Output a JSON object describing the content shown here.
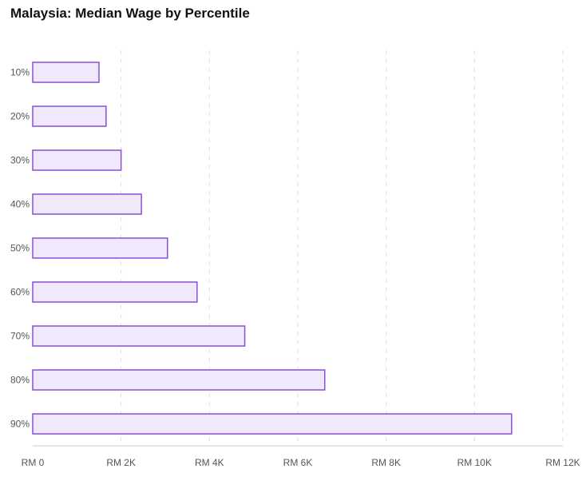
{
  "title": "Malaysia: Median Wage by Percentile",
  "chart_data": {
    "type": "bar",
    "orientation": "horizontal",
    "title": "Malaysia: Median Wage by Percentile",
    "xlabel": "",
    "ylabel": "",
    "categories": [
      "10%",
      "20%",
      "30%",
      "40%",
      "50%",
      "60%",
      "70%",
      "80%",
      "90%"
    ],
    "values": [
      1500,
      1660,
      2000,
      2460,
      3050,
      3720,
      4800,
      6610,
      10840
    ],
    "xlim": [
      0,
      12000
    ],
    "x_ticks": [
      0,
      2000,
      4000,
      6000,
      8000,
      10000,
      12000
    ],
    "x_tick_labels": [
      "RM 0",
      "RM 2K",
      "RM 4K",
      "RM 6K",
      "RM 8K",
      "RM 10K",
      "RM 12K"
    ],
    "grid": "vertical dashed",
    "legend": "none",
    "colors": {
      "bar_fill": "#f0e9fb",
      "bar_stroke": "#8a4fd6",
      "grid": "#dddddd",
      "axis": "#cccccc"
    }
  }
}
